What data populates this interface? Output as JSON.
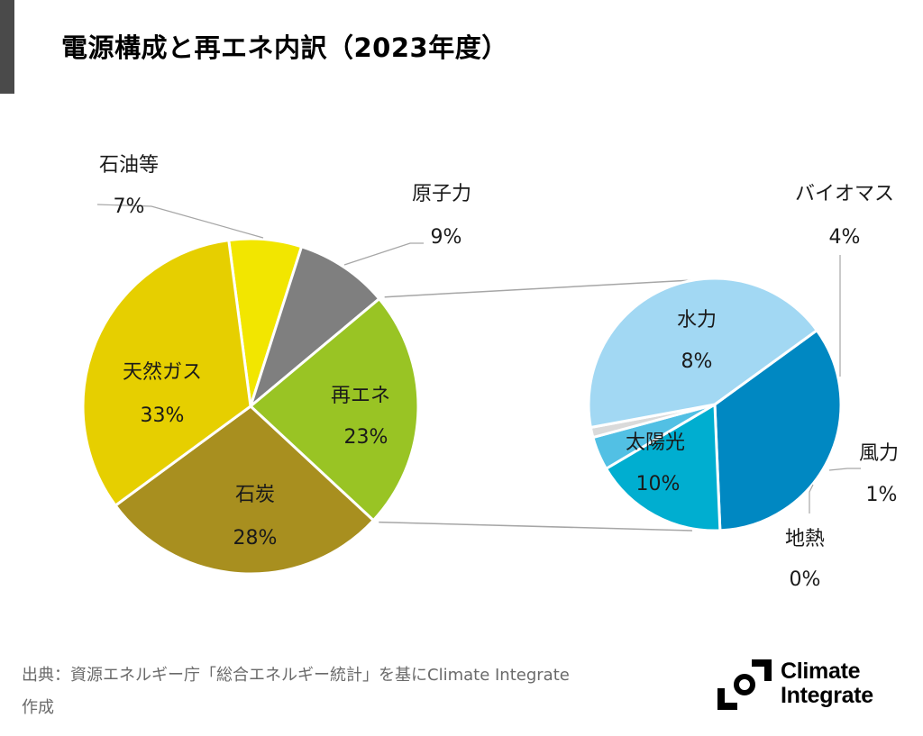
{
  "title": "電源構成と再エネ内訳（2023年度）",
  "chart_data": [
    {
      "type": "pie",
      "title": "電源構成",
      "labels": [
        "石油等",
        "原子力",
        "再エネ",
        "石炭",
        "天然ガス"
      ],
      "values": [
        7,
        9,
        23,
        28,
        33
      ],
      "value_labels": [
        "7%",
        "9%",
        "23%",
        "28%",
        "33%"
      ],
      "colors": [
        "#F2E600",
        "#7F7F7F",
        "#99C424",
        "#A88F1F",
        "#E6CF00"
      ],
      "unit": "%"
    },
    {
      "type": "pie",
      "title": "再エネ内訳",
      "labels": [
        "水力",
        "バイオマス",
        "風力",
        "地熱",
        "太陽光"
      ],
      "values": [
        8,
        4,
        1,
        0.3,
        10
      ],
      "value_labels": [
        "8%",
        "4%",
        "1%",
        "0%",
        "10%"
      ],
      "colors": [
        "#0088C2",
        "#00AED0",
        "#52C0E4",
        "#DADADA",
        "#A2D8F3"
      ],
      "unit": "%",
      "breakout_of": "再エネ"
    }
  ],
  "source": {
    "line1": "出典：資源エネルギー庁「総合エネルギー統計」を基にClimate Integrate",
    "line2": "作成"
  },
  "logo": {
    "line1": "Climate",
    "line2": "Integrate"
  }
}
